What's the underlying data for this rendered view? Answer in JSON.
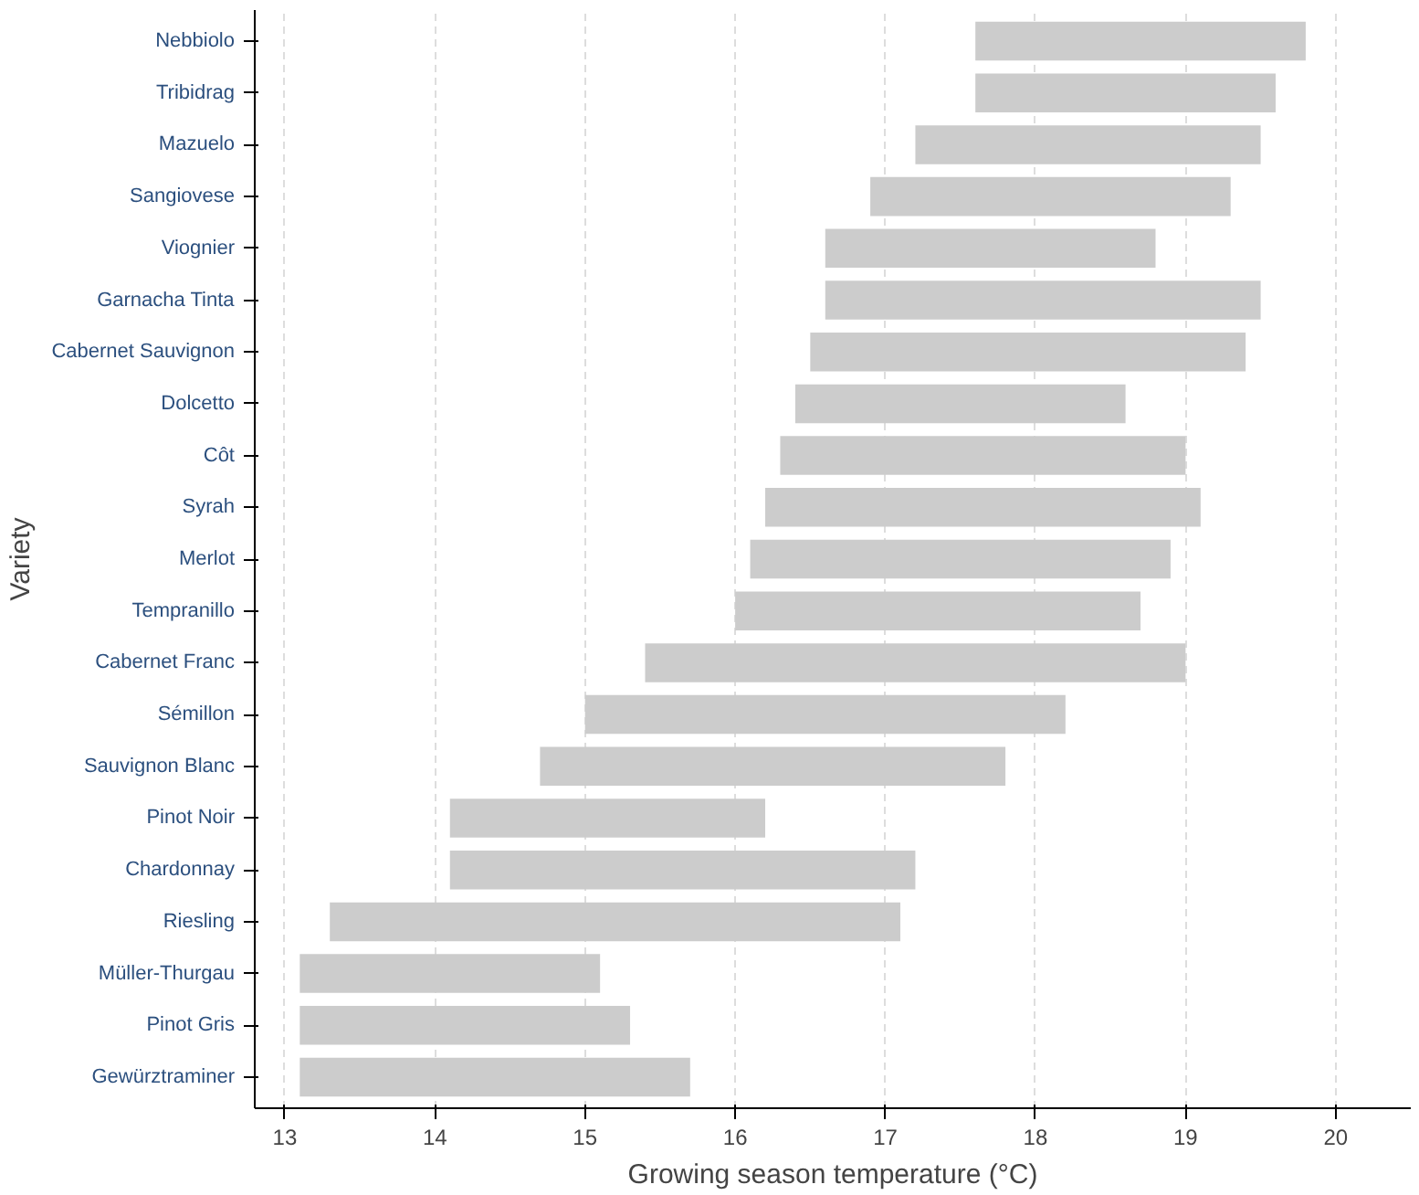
{
  "chart_data": {
    "type": "bar",
    "orientation": "horizontal",
    "xlabel": "Growing season temperature (°C)",
    "ylabel": "Variety",
    "categories": [
      "Nebbiolo",
      "Tribidrag",
      "Mazuelo",
      "Sangiovese",
      "Viognier",
      "Garnacha Tinta",
      "Cabernet Sauvignon",
      "Dolcetto",
      "Côt",
      "Syrah",
      "Merlot",
      "Tempranillo",
      "Cabernet Franc",
      "Sémillon",
      "Sauvignon Blanc",
      "Pinot Noir",
      "Chardonnay",
      "Riesling",
      "Müller-Thurgau",
      "Pinot Gris",
      "Gewürztraminer"
    ],
    "base": [
      17.6,
      17.6,
      17.2,
      16.9,
      16.6,
      16.6,
      16.5,
      16.4,
      16.3,
      16.2,
      16.1,
      16.0,
      15.4,
      15.0,
      14.7,
      14.1,
      14.1,
      13.3,
      13.1,
      13.1,
      13.1
    ],
    "values": [
      2.2,
      2.0,
      2.3,
      2.4,
      2.2,
      2.9,
      2.9,
      2.2,
      2.7,
      2.9,
      2.8,
      2.7,
      3.6,
      3.2,
      3.1,
      2.1,
      3.1,
      3.8,
      2.0,
      2.2,
      2.6
    ],
    "color": "#cccccc",
    "xlim": [
      12.8,
      20.5
    ],
    "xticks": [
      13,
      14,
      15,
      16,
      17,
      18,
      19,
      20
    ],
    "grid": "x"
  }
}
